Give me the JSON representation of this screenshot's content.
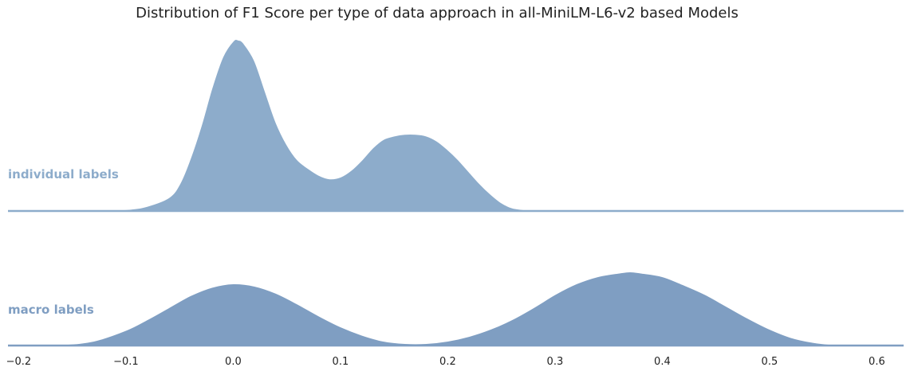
{
  "chart_data": {
    "type": "area",
    "title": "Distribution of F1 Score per type of data approach in all-MiniLM-L6-v2 based Models",
    "xlabel": "",
    "ylabel": "",
    "xlim": [
      -0.21,
      0.625
    ],
    "xticks": [
      -0.2,
      -0.1,
      0.0,
      0.1,
      0.2,
      0.3,
      0.4,
      0.5,
      0.6
    ],
    "xtick_labels": [
      "−0.2",
      "−0.1",
      "0.0",
      "0.1",
      "0.2",
      "0.3",
      "0.4",
      "0.5",
      "0.6"
    ],
    "grid": false,
    "series": [
      {
        "name": "individual labels",
        "color": "#8daccb",
        "x": [
          -0.14,
          -0.1,
          -0.08,
          -0.06,
          -0.05,
          -0.04,
          -0.03,
          -0.02,
          -0.01,
          0.0,
          0.005,
          0.01,
          0.02,
          0.03,
          0.04,
          0.05,
          0.06,
          0.07,
          0.08,
          0.09,
          0.1,
          0.11,
          0.12,
          0.13,
          0.14,
          0.15,
          0.16,
          0.17,
          0.18,
          0.19,
          0.2,
          0.21,
          0.22,
          0.23,
          0.24,
          0.25,
          0.26,
          0.27,
          0.28,
          0.3
        ],
        "y": [
          0.0,
          0.01,
          0.03,
          0.08,
          0.16,
          0.31,
          0.5,
          0.72,
          0.9,
          0.995,
          1.0,
          0.98,
          0.88,
          0.7,
          0.52,
          0.39,
          0.3,
          0.25,
          0.21,
          0.19,
          0.2,
          0.24,
          0.3,
          0.37,
          0.42,
          0.44,
          0.45,
          0.45,
          0.44,
          0.41,
          0.36,
          0.3,
          0.23,
          0.16,
          0.1,
          0.05,
          0.02,
          0.01,
          0.0,
          0.0
        ]
      },
      {
        "name": "macro labels",
        "color": "#7f9ec2",
        "x": [
          -0.2,
          -0.16,
          -0.13,
          -0.1,
          -0.08,
          -0.06,
          -0.04,
          -0.02,
          0.0,
          0.02,
          0.04,
          0.06,
          0.08,
          0.1,
          0.12,
          0.14,
          0.16,
          0.18,
          0.2,
          0.22,
          0.24,
          0.26,
          0.28,
          0.3,
          0.32,
          0.34,
          0.36,
          0.37,
          0.38,
          0.4,
          0.42,
          0.44,
          0.46,
          0.48,
          0.5,
          0.52,
          0.54,
          0.56,
          0.58,
          0.6
        ],
        "y": [
          0.0,
          0.01,
          0.04,
          0.13,
          0.22,
          0.32,
          0.42,
          0.49,
          0.52,
          0.5,
          0.44,
          0.35,
          0.25,
          0.16,
          0.09,
          0.04,
          0.02,
          0.02,
          0.04,
          0.08,
          0.14,
          0.22,
          0.32,
          0.43,
          0.52,
          0.58,
          0.61,
          0.62,
          0.61,
          0.58,
          0.51,
          0.43,
          0.33,
          0.23,
          0.14,
          0.07,
          0.03,
          0.01,
          0.0,
          0.0
        ]
      }
    ]
  }
}
